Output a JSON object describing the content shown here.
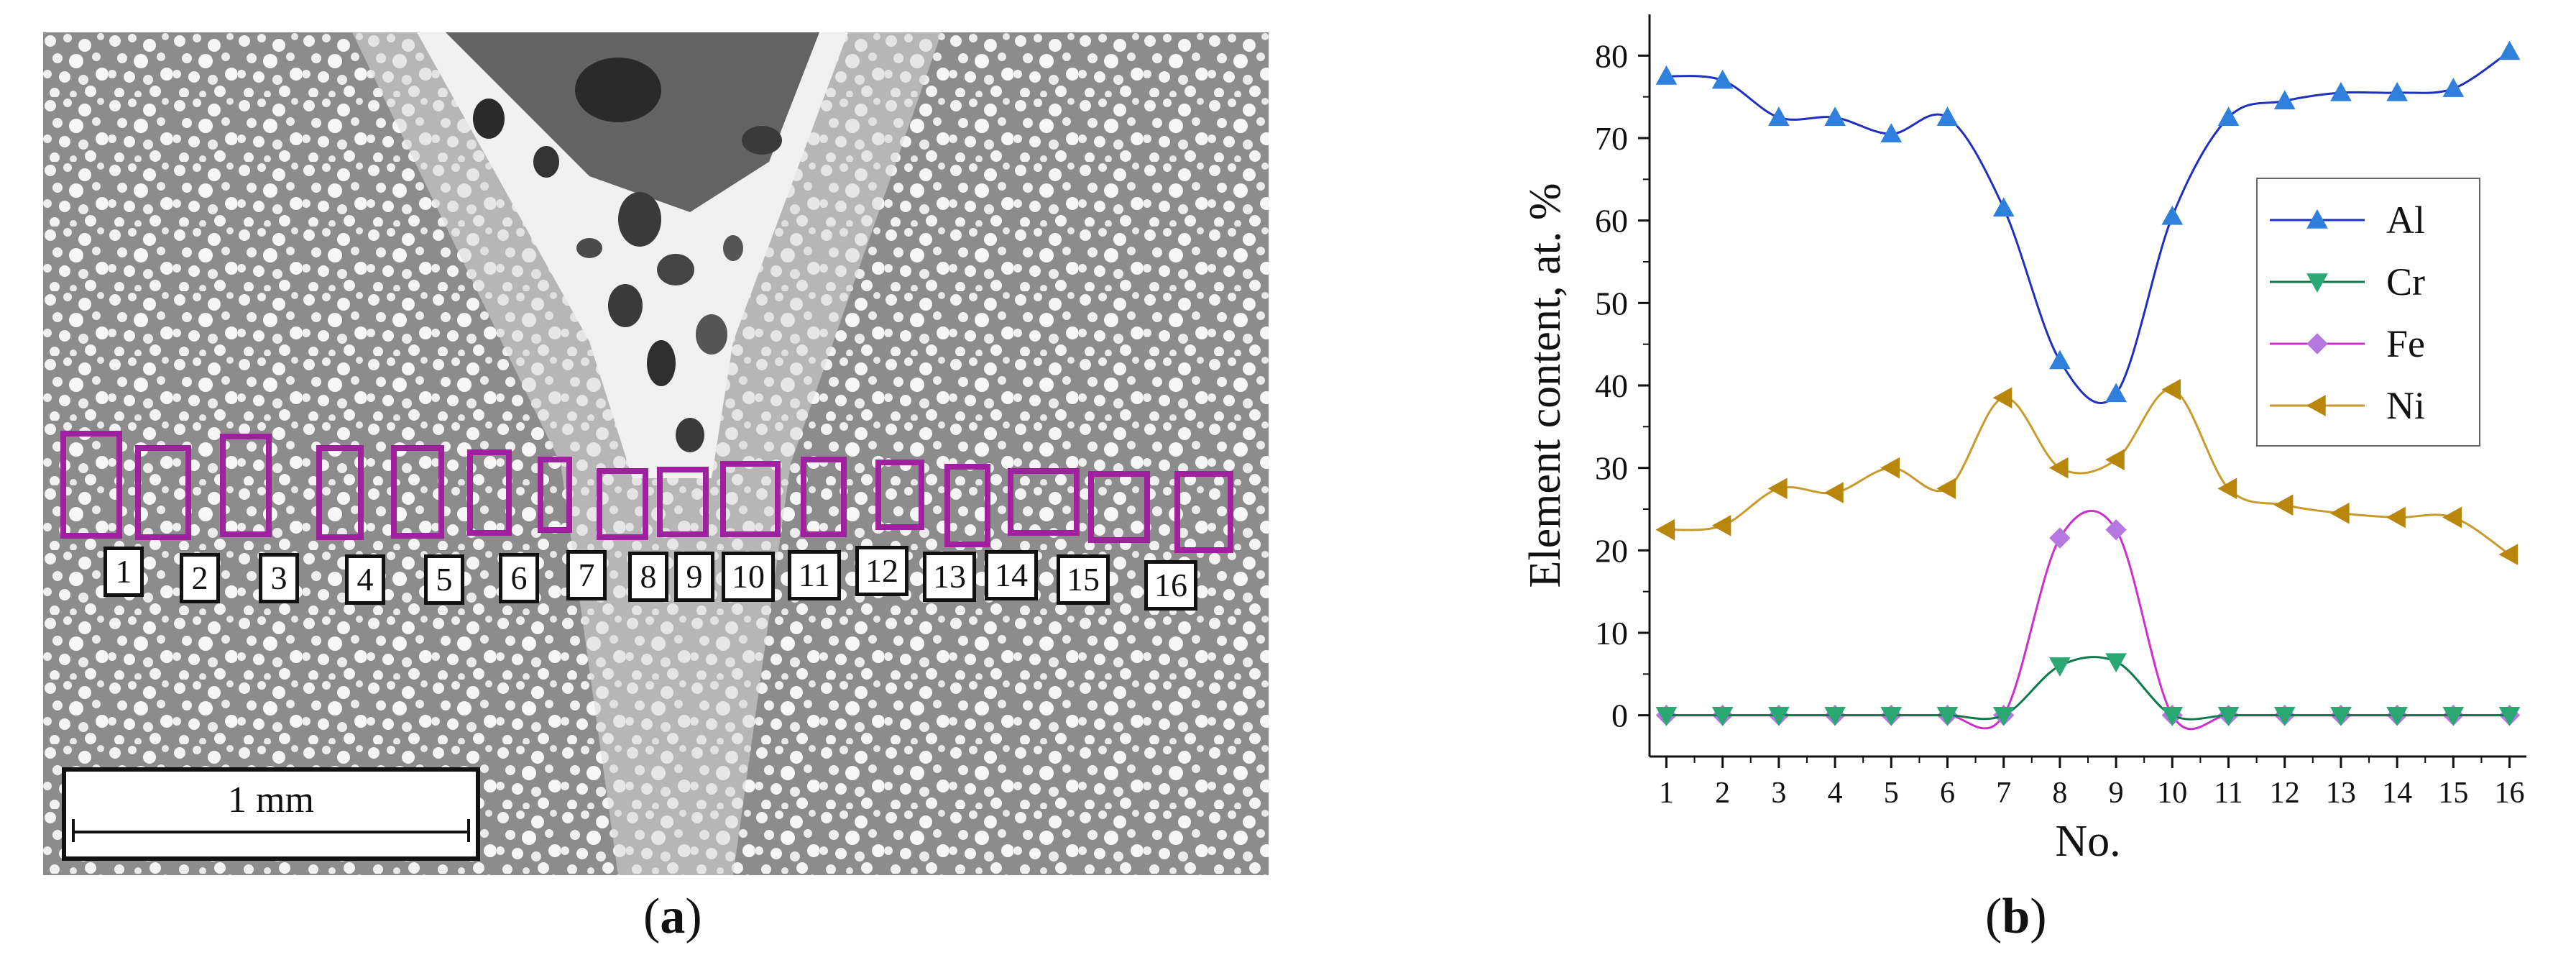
{
  "panel_a": {
    "caption_open": "(",
    "caption_letter": "a",
    "caption_close": ")",
    "region_labels": [
      "1",
      "2",
      "3",
      "4",
      "5",
      "6",
      "7",
      "8",
      "9",
      "10",
      "11",
      "12",
      "13",
      "14",
      "15",
      "16"
    ],
    "scale_bar_label": "1 mm",
    "box_color": "#a020a0"
  },
  "panel_b": {
    "caption_open": "(",
    "caption_letter": "b",
    "caption_close": ")"
  },
  "chart_data": {
    "type": "line",
    "xlabel": "No.",
    "ylabel": "Element content, at. %",
    "x": [
      1,
      2,
      3,
      4,
      5,
      6,
      7,
      8,
      9,
      10,
      11,
      12,
      13,
      14,
      15,
      16
    ],
    "xlim": [
      0.7,
      16.3
    ],
    "ylim": [
      -5,
      85
    ],
    "yticks": [
      0,
      10,
      20,
      30,
      40,
      50,
      60,
      70,
      80
    ],
    "grid": false,
    "legend_position": "right",
    "series": [
      {
        "name": "Al",
        "color": "#1f2fbf",
        "marker_color": "#2f7fdc",
        "marker": "triangle-up",
        "values": [
          77.5,
          77,
          72.5,
          72.5,
          70.5,
          72.5,
          61.5,
          43,
          39,
          60.5,
          72.5,
          74.5,
          75.5,
          75.5,
          76,
          80.5
        ]
      },
      {
        "name": "Cr",
        "color": "#0e7a4c",
        "marker_color": "#2aa874",
        "marker": "triangle-down",
        "values": [
          0,
          0,
          0,
          0,
          0,
          0,
          0,
          6,
          6.5,
          0,
          0,
          0,
          0,
          0,
          0,
          0
        ]
      },
      {
        "name": "Fe",
        "color": "#cc30cc",
        "marker_color": "#b478e0",
        "marker": "diamond",
        "values": [
          0,
          0,
          0,
          0,
          0,
          0,
          0,
          21.5,
          22.5,
          0,
          0,
          0,
          0,
          0,
          0,
          0
        ]
      },
      {
        "name": "Ni",
        "color": "#c89a2a",
        "marker_color": "#b8860b",
        "marker": "triangle-left",
        "values": [
          22.5,
          23,
          27.5,
          27,
          30,
          27.5,
          38.5,
          30,
          31,
          39.5,
          27.5,
          25.5,
          24.5,
          24,
          24,
          19.5
        ]
      }
    ]
  }
}
